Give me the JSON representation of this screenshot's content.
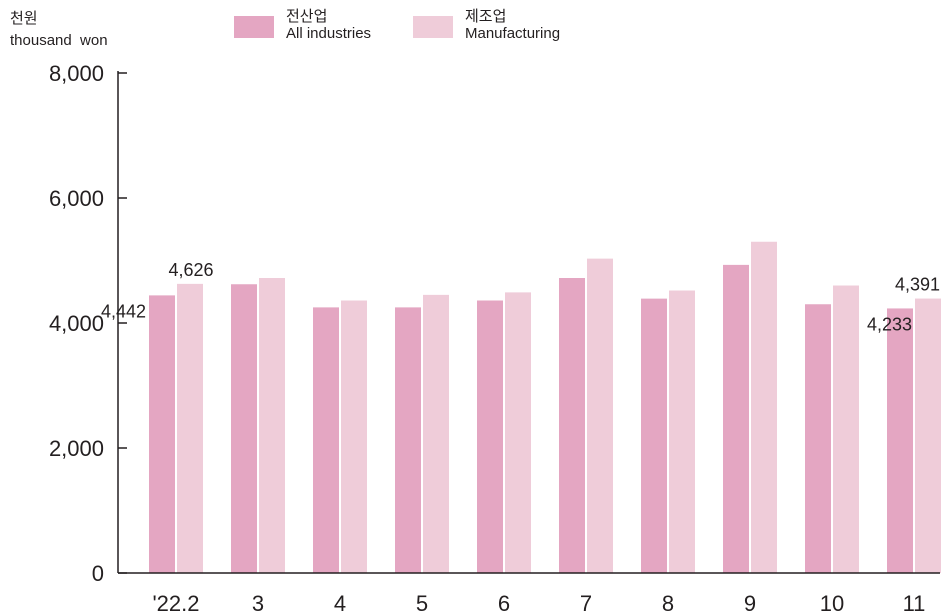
{
  "unit_label": {
    "ko": "천원",
    "en": "thousand  won"
  },
  "colors": {
    "all_industries": "#e4a6c2",
    "manufacturing": "#efccd9",
    "axis": "#231f20"
  },
  "chart_data": {
    "type": "bar",
    "categories": [
      "'22.2",
      "3",
      "4",
      "5",
      "6",
      "7",
      "8",
      "9",
      "10",
      "11"
    ],
    "series": [
      {
        "name": "전산업 All industries",
        "name_ko": "전산업",
        "name_en": "All industries",
        "values": [
          4442,
          4620,
          4250,
          4250,
          4360,
          4720,
          4390,
          4930,
          4300,
          4233
        ]
      },
      {
        "name": "제조업 Manufacturing",
        "name_ko": "제조업",
        "name_en": "Manufacturing",
        "values": [
          4626,
          4720,
          4360,
          4450,
          4490,
          5030,
          4520,
          5300,
          4600,
          4391
        ]
      }
    ],
    "ylim": [
      0,
      8000
    ],
    "yticks": [
      0,
      2000,
      4000,
      6000,
      8000
    ],
    "ytick_labels": [
      "0",
      "2,000",
      "4,000",
      "6,000",
      "8,000"
    ],
    "legend_position": "top",
    "grid": false,
    "data_labels": [
      {
        "series": 0,
        "index": 0,
        "text": "4,442"
      },
      {
        "series": 1,
        "index": 0,
        "text": "4,626"
      },
      {
        "series": 0,
        "index": 9,
        "text": "4,233"
      },
      {
        "series": 1,
        "index": 9,
        "text": "4,391"
      }
    ]
  }
}
